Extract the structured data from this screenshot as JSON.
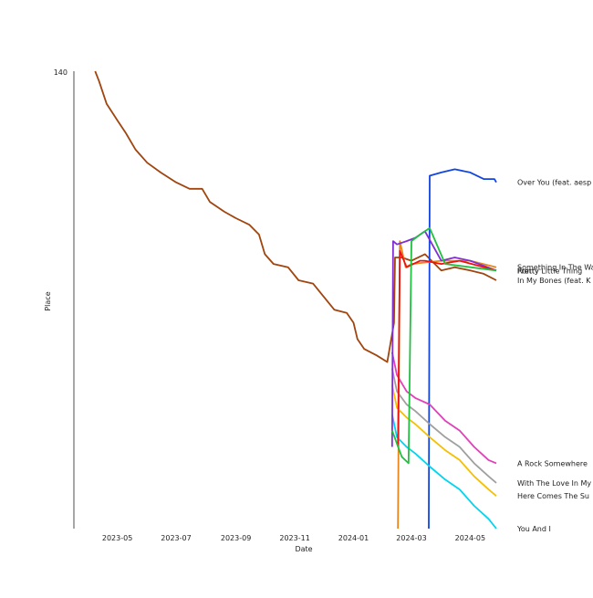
{
  "chart_data": {
    "type": "line",
    "title": "",
    "xlabel": "Date",
    "ylabel": "Place",
    "y_axis": {
      "top_label": "140",
      "range_top": 140
    },
    "x_ticks": [
      "2023-05",
      "2023-07",
      "2023-09",
      "2023-11",
      "2024-01",
      "2024-03",
      "2024-05"
    ],
    "grid": false,
    "legend": "labels at line ends",
    "series": [
      {
        "name": "In My Bones (feat. K",
        "color": "#a0450f",
        "points": [
          [
            "2023-04-08",
            140
          ],
          [
            "2023-04-12",
            137
          ],
          [
            "2023-04-20",
            130
          ],
          [
            "2023-05-01",
            125
          ],
          [
            "2023-05-10",
            121
          ],
          [
            "2023-05-20",
            116
          ],
          [
            "2023-06-01",
            112
          ],
          [
            "2023-06-15",
            109
          ],
          [
            "2023-07-01",
            106
          ],
          [
            "2023-07-15",
            104
          ],
          [
            "2023-07-28",
            104
          ],
          [
            "2023-08-05",
            100
          ],
          [
            "2023-08-20",
            97
          ],
          [
            "2023-09-01",
            95
          ],
          [
            "2023-09-15",
            93
          ],
          [
            "2023-09-25",
            90
          ],
          [
            "2023-10-01",
            84
          ],
          [
            "2023-10-10",
            81
          ],
          [
            "2023-10-25",
            80
          ],
          [
            "2023-11-05",
            76
          ],
          [
            "2023-11-20",
            75
          ],
          [
            "2023-12-01",
            71
          ],
          [
            "2023-12-12",
            67
          ],
          [
            "2023-12-25",
            66
          ],
          [
            "2024-01-01",
            63
          ],
          [
            "2024-01-05",
            58
          ],
          [
            "2024-01-12",
            55
          ],
          [
            "2024-01-25",
            53
          ],
          [
            "2024-02-05",
            51
          ],
          [
            "2024-02-12",
            63
          ],
          [
            "2024-02-13",
            83
          ],
          [
            "2024-02-20",
            83
          ],
          [
            "2024-03-01",
            82
          ],
          [
            "2024-03-15",
            84
          ],
          [
            "2024-04-01",
            79
          ],
          [
            "2024-04-15",
            80
          ],
          [
            "2024-05-01",
            79
          ],
          [
            "2024-05-15",
            78
          ],
          [
            "2024-05-28",
            76
          ]
        ]
      },
      {
        "name": "Over You (feat. aesp",
        "color": "#1245e0",
        "points": [
          [
            "2024-03-19",
            0
          ],
          [
            "2024-03-20",
            108
          ],
          [
            "2024-04-01",
            109
          ],
          [
            "2024-04-15",
            110
          ],
          [
            "2024-05-01",
            109
          ],
          [
            "2024-05-15",
            107
          ],
          [
            "2024-05-26",
            107
          ],
          [
            "2024-05-28",
            106
          ]
        ]
      },
      {
        "name": "Something In The Way",
        "color": "#e8851b",
        "points": [
          [
            "2024-02-16",
            0
          ],
          [
            "2024-02-18",
            88
          ],
          [
            "2024-02-24",
            80
          ],
          [
            "2024-03-01",
            81
          ],
          [
            "2024-04-01",
            82
          ],
          [
            "2024-04-15",
            82
          ],
          [
            "2024-05-01",
            82
          ],
          [
            "2024-05-28",
            80
          ]
        ]
      },
      {
        "name": "A Rock Somewhere",
        "color": "#e040b8",
        "points": [
          [
            "2024-02-10",
            54
          ],
          [
            "2024-02-15",
            47
          ],
          [
            "2024-02-25",
            42
          ],
          [
            "2024-03-05",
            40
          ],
          [
            "2024-03-20",
            38
          ],
          [
            "2024-04-05",
            33
          ],
          [
            "2024-04-20",
            30
          ],
          [
            "2024-05-05",
            25
          ],
          [
            "2024-05-20",
            21
          ],
          [
            "2024-05-28",
            20
          ]
        ]
      },
      {
        "name": "With The Love In My",
        "color": "#a0a0a0",
        "points": [
          [
            "2024-02-10",
            49
          ],
          [
            "2024-02-15",
            42
          ],
          [
            "2024-02-25",
            38
          ],
          [
            "2024-03-05",
            36
          ],
          [
            "2024-03-20",
            32
          ],
          [
            "2024-04-05",
            28
          ],
          [
            "2024-04-20",
            25
          ],
          [
            "2024-05-05",
            20
          ],
          [
            "2024-05-20",
            16
          ],
          [
            "2024-05-28",
            14
          ]
        ]
      },
      {
        "name": "Here Comes The Su",
        "color": "#f5c000",
        "points": [
          [
            "2024-02-10",
            44
          ],
          [
            "2024-02-15",
            37
          ],
          [
            "2024-02-25",
            34
          ],
          [
            "2024-03-05",
            32
          ],
          [
            "2024-03-20",
            28
          ],
          [
            "2024-04-05",
            24
          ],
          [
            "2024-04-20",
            21
          ],
          [
            "2024-05-05",
            16
          ],
          [
            "2024-05-20",
            12
          ],
          [
            "2024-05-28",
            10
          ]
        ]
      },
      {
        "name": "You And I",
        "color": "#00d5f0",
        "points": [
          [
            "2024-02-10",
            35
          ],
          [
            "2024-02-15",
            28
          ],
          [
            "2024-02-25",
            25
          ],
          [
            "2024-03-05",
            23
          ],
          [
            "2024-03-20",
            19
          ],
          [
            "2024-04-05",
            15
          ],
          [
            "2024-04-20",
            12
          ],
          [
            "2024-05-05",
            7
          ],
          [
            "2024-05-20",
            3
          ],
          [
            "2024-05-28",
            0
          ]
        ]
      },
      {
        "name": "Pretty",
        "color": "#8030d0",
        "points": [
          [
            "2024-02-10",
            25
          ],
          [
            "2024-02-11",
            88
          ],
          [
            "2024-02-15",
            87
          ],
          [
            "2024-02-25",
            88
          ],
          [
            "2024-03-05",
            89
          ],
          [
            "2024-03-15",
            91
          ],
          [
            "2024-04-01",
            82
          ],
          [
            "2024-04-15",
            83
          ],
          [
            "2024-05-01",
            82
          ],
          [
            "2024-05-28",
            79
          ]
        ]
      },
      {
        "name": "Pretty Little Thing",
        "color": "#ee1111",
        "points": [
          [
            "2024-02-16",
            25
          ],
          [
            "2024-02-18",
            85
          ],
          [
            "2024-02-25",
            80
          ],
          [
            "2024-03-10",
            82
          ],
          [
            "2024-03-15",
            82
          ],
          [
            "2024-04-01",
            81
          ],
          [
            "2024-04-20",
            82
          ],
          [
            "2024-05-28",
            79
          ]
        ]
      },
      {
        "name": "Run",
        "color": "#20c040",
        "points": [
          [
            "2024-02-10",
            30
          ],
          [
            "2024-02-20",
            22
          ],
          [
            "2024-02-27",
            20
          ],
          [
            "2024-03-01",
            88
          ],
          [
            "2024-03-10",
            90
          ],
          [
            "2024-03-20",
            92
          ],
          [
            "2024-04-05",
            81
          ],
          [
            "2024-05-28",
            79
          ]
        ]
      }
    ]
  }
}
